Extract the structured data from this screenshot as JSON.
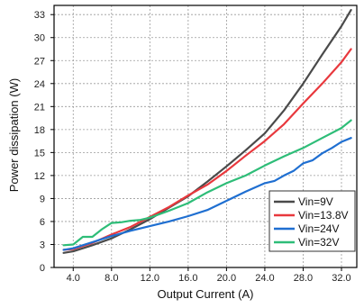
{
  "chart_data": {
    "type": "line",
    "title": "",
    "xlabel": "Output Current (A)",
    "ylabel": "Power dissipation (W)",
    "xlim": [
      2.0,
      33.6
    ],
    "ylim": [
      0,
      34.2
    ],
    "x_ticks": [
      4.0,
      8.0,
      12.0,
      16.0,
      20.0,
      24.0,
      28.0,
      32.0
    ],
    "x_tick_labels": [
      "4.0",
      "8.0",
      "12.0",
      "16.0",
      "20.0",
      "24.0",
      "28.0",
      "32.0"
    ],
    "y_ticks": [
      0,
      3,
      6,
      9,
      12,
      15,
      18,
      21,
      24,
      27,
      30,
      33
    ],
    "y_tick_labels": [
      "0",
      "3",
      "6",
      "9",
      "12",
      "15",
      "18",
      "21",
      "24",
      "27",
      "30",
      "33"
    ],
    "grid": true,
    "legend_position": "bottom-right",
    "series": [
      {
        "name": "Vin=9V",
        "color": "#4a4a4a",
        "x": [
          3,
          4,
          6,
          8,
          10,
          12,
          14,
          16,
          18,
          20,
          22,
          24,
          26,
          28,
          30,
          32,
          33
        ],
        "y": [
          1.9,
          2.1,
          2.9,
          3.8,
          5.0,
          6.3,
          7.8,
          9.3,
          11.2,
          13.2,
          15.3,
          17.5,
          20.5,
          24.0,
          27.8,
          31.5,
          33.6
        ]
      },
      {
        "name": "Vin=13.8V",
        "color": "#e8383d",
        "x": [
          3,
          4,
          6,
          8,
          10,
          12,
          14,
          16,
          18,
          20,
          22,
          24,
          26,
          28,
          30,
          32,
          33
        ],
        "y": [
          2.3,
          2.4,
          3.2,
          4.3,
          5.3,
          6.6,
          7.9,
          9.4,
          10.8,
          12.6,
          14.6,
          16.5,
          18.7,
          21.4,
          24.0,
          26.8,
          28.5
        ]
      },
      {
        "name": "Vin=24V",
        "color": "#1f6fd1",
        "x": [
          3,
          4,
          6,
          8,
          10,
          12,
          14,
          16,
          18,
          20,
          22,
          24,
          25,
          26,
          27,
          28,
          29,
          30,
          31,
          32,
          33
        ],
        "y": [
          2.3,
          2.5,
          3.3,
          4.1,
          4.8,
          5.4,
          6.0,
          6.7,
          7.5,
          8.7,
          9.9,
          11.0,
          11.3,
          12.0,
          12.6,
          13.6,
          14.0,
          14.9,
          15.6,
          16.4,
          16.9
        ]
      },
      {
        "name": "Vin=32V",
        "color": "#2ebd78",
        "x": [
          3,
          4,
          5,
          6,
          7,
          8,
          9,
          10,
          11,
          12,
          14,
          16,
          18,
          20,
          22,
          24,
          26,
          28,
          30,
          32,
          33
        ],
        "y": [
          2.9,
          3.0,
          4.0,
          4.0,
          5.0,
          5.8,
          5.9,
          6.1,
          6.2,
          6.5,
          7.4,
          8.4,
          9.8,
          11.0,
          12.0,
          13.3,
          14.5,
          15.6,
          16.9,
          18.2,
          19.2
        ]
      }
    ]
  }
}
